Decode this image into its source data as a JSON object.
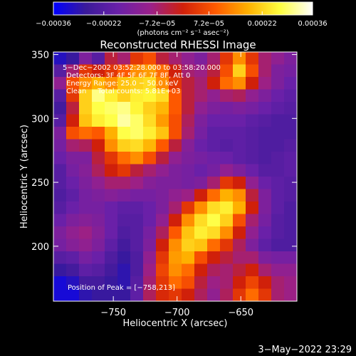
{
  "chart_data": {
    "type": "heatmap",
    "title": "Reconstructed RHESSI Image",
    "xlabel": "Heliocentric X (arcsec)",
    "ylabel": "Heliocentric Y (arcsec)",
    "xlim": [
      -797,
      -606
    ],
    "ylim": [
      157,
      352
    ],
    "x_ticks": [
      -750,
      -700,
      -650
    ],
    "x_tick_labels": [
      "−750",
      "−700",
      "−650"
    ],
    "y_ticks": [
      200,
      250,
      300,
      350
    ],
    "y_tick_labels": [
      "200",
      "250",
      "300",
      "350"
    ],
    "colorbar": {
      "min": -0.00036,
      "max": 0.00036,
      "ticks": [
        -0.00036,
        -0.00022,
        -7.2e-05,
        7.2e-05,
        0.00022,
        0.00036
      ],
      "tick_labels": [
        "−0.00036",
        "−0.00022",
        "−7.2e−05",
        "7.2e−05",
        "0.00022",
        "0.00036"
      ],
      "unit_label": "(photons cm⁻² s⁻¹ asec⁻²)",
      "colors": [
        "#0000ff",
        "#3a1a9a",
        "#6a20a8",
        "#9a208a",
        "#d0200a",
        "#ff5a00",
        "#ffb000",
        "#ffff40",
        "#ffffff"
      ]
    },
    "annotations": [
      "5−Dec−2002 03:52:28.000 to 03:58:20.000",
      "Detectors: 3F 4F 5F 6F 7F 8F, Att 0",
      "Energy Range: 25.0 − 50.0 keV",
      "Clean     Total counts: 5.81E+03"
    ],
    "peak_label": "Position of Peak = [−758,213]",
    "peak": [
      -758,
      213
    ],
    "data": [
      [
        0.08,
        0.12,
        0.3,
        0.2,
        0.45,
        0.4,
        0.55,
        0.6,
        0.45,
        0.4,
        0.35,
        0.3,
        0.4,
        0.55,
        0.7,
        0.55,
        0.4,
        0.35,
        0.3
      ],
      [
        0.2,
        0.4,
        0.55,
        0.5,
        0.55,
        0.62,
        0.7,
        0.72,
        0.65,
        0.5,
        0.4,
        0.38,
        0.45,
        0.6,
        0.8,
        0.6,
        0.4,
        0.3,
        0.28
      ],
      [
        0.35,
        0.6,
        0.7,
        0.75,
        0.7,
        0.78,
        0.8,
        0.82,
        0.7,
        0.55,
        0.45,
        0.4,
        0.5,
        0.65,
        0.7,
        0.5,
        0.38,
        0.3,
        0.25
      ],
      [
        0.2,
        0.55,
        0.8,
        0.92,
        0.85,
        0.8,
        0.85,
        0.86,
        0.82,
        0.62,
        0.45,
        0.4,
        0.35,
        0.4,
        0.42,
        0.35,
        0.3,
        0.25,
        0.22
      ],
      [
        0.15,
        0.45,
        0.8,
        0.88,
        0.9,
        0.92,
        0.86,
        0.8,
        0.76,
        0.62,
        0.45,
        0.35,
        0.3,
        0.28,
        0.3,
        0.28,
        0.25,
        0.22,
        0.2
      ],
      [
        0.2,
        0.5,
        0.78,
        0.85,
        0.88,
        0.94,
        0.9,
        0.82,
        0.72,
        0.6,
        0.42,
        0.3,
        0.25,
        0.25,
        0.25,
        0.22,
        0.2,
        0.18,
        0.18
      ],
      [
        0.3,
        0.6,
        0.65,
        0.62,
        0.75,
        0.88,
        0.9,
        0.85,
        0.78,
        0.6,
        0.4,
        0.28,
        0.22,
        0.22,
        0.22,
        0.2,
        0.18,
        0.18,
        0.18
      ],
      [
        0.28,
        0.4,
        0.42,
        0.5,
        0.7,
        0.8,
        0.82,
        0.76,
        0.62,
        0.45,
        0.32,
        0.25,
        0.22,
        0.2,
        0.22,
        0.2,
        0.18,
        0.18,
        0.2
      ],
      [
        0.25,
        0.3,
        0.3,
        0.45,
        0.55,
        0.65,
        0.7,
        0.6,
        0.45,
        0.35,
        0.3,
        0.28,
        0.26,
        0.25,
        0.22,
        0.2,
        0.18,
        0.2,
        0.22
      ],
      [
        0.2,
        0.28,
        0.32,
        0.42,
        0.5,
        0.55,
        0.45,
        0.4,
        0.35,
        0.3,
        0.28,
        0.25,
        0.28,
        0.35,
        0.3,
        0.25,
        0.2,
        0.2,
        0.22
      ],
      [
        0.2,
        0.25,
        0.3,
        0.35,
        0.4,
        0.4,
        0.38,
        0.32,
        0.3,
        0.3,
        0.28,
        0.3,
        0.4,
        0.55,
        0.5,
        0.35,
        0.25,
        0.22,
        0.2
      ],
      [
        0.18,
        0.22,
        0.28,
        0.3,
        0.32,
        0.3,
        0.28,
        0.28,
        0.3,
        0.35,
        0.38,
        0.5,
        0.65,
        0.75,
        0.7,
        0.45,
        0.3,
        0.22,
        0.2
      ],
      [
        0.2,
        0.25,
        0.28,
        0.28,
        0.25,
        0.22,
        0.22,
        0.25,
        0.3,
        0.4,
        0.55,
        0.7,
        0.82,
        0.85,
        0.75,
        0.5,
        0.3,
        0.22,
        0.18
      ],
      [
        0.25,
        0.3,
        0.32,
        0.3,
        0.25,
        0.2,
        0.2,
        0.25,
        0.35,
        0.5,
        0.7,
        0.82,
        0.88,
        0.8,
        0.6,
        0.4,
        0.28,
        0.2,
        0.18
      ],
      [
        0.3,
        0.35,
        0.38,
        0.32,
        0.25,
        0.18,
        0.2,
        0.28,
        0.42,
        0.62,
        0.78,
        0.85,
        0.82,
        0.7,
        0.5,
        0.35,
        0.25,
        0.2,
        0.18
      ],
      [
        0.28,
        0.32,
        0.35,
        0.3,
        0.22,
        0.15,
        0.2,
        0.3,
        0.5,
        0.7,
        0.8,
        0.78,
        0.65,
        0.55,
        0.42,
        0.3,
        0.22,
        0.18,
        0.18
      ],
      [
        0.2,
        0.22,
        0.28,
        0.25,
        0.18,
        0.12,
        0.18,
        0.35,
        0.55,
        0.72,
        0.75,
        0.6,
        0.5,
        0.45,
        0.4,
        0.4,
        0.3,
        0.28,
        0.28
      ],
      [
        0.12,
        0.15,
        0.22,
        0.2,
        0.15,
        0.1,
        0.18,
        0.38,
        0.58,
        0.7,
        0.65,
        0.5,
        0.42,
        0.4,
        0.45,
        0.5,
        0.4,
        0.35,
        0.35
      ],
      [
        0.05,
        0.08,
        0.15,
        0.15,
        0.12,
        0.1,
        0.2,
        0.4,
        0.55,
        0.65,
        0.6,
        0.45,
        0.38,
        0.4,
        0.5,
        0.58,
        0.5,
        0.4,
        0.38
      ],
      [
        0.05,
        0.05,
        0.1,
        0.12,
        0.12,
        0.12,
        0.22,
        0.42,
        0.52,
        0.55,
        0.5,
        0.42,
        0.35,
        0.42,
        0.55,
        0.65,
        0.55,
        0.4,
        0.38
      ]
    ]
  },
  "footer": {
    "timestamp": "3−May−2022 23:29"
  }
}
